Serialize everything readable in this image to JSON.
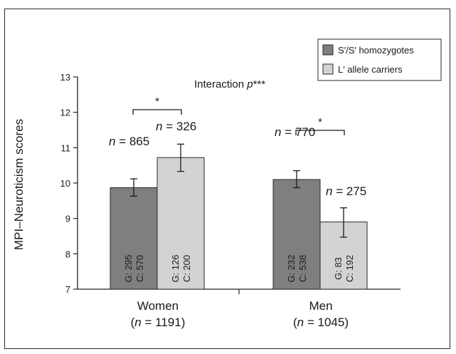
{
  "chart_data": {
    "type": "bar",
    "title": "",
    "xlabel": "",
    "ylabel": "MPI–Neuroticism scores",
    "ylim": [
      7,
      13
    ],
    "yticks": [
      "7",
      "8",
      "9",
      "10",
      "11",
      "12",
      "13"
    ],
    "legend_position": "top-right",
    "annotation": {
      "prefix": "Interaction ",
      "p": "p",
      "stars": "***"
    },
    "categories": [
      {
        "name": "Women",
        "n_open": "(",
        "n_var": "n",
        "n_eq": " = 1191)"
      },
      {
        "name": "Men",
        "n_open": "(",
        "n_var": "n",
        "n_eq": " = 1045)"
      }
    ],
    "series": [
      {
        "name": "S′/S′ homozygotes",
        "color": "#7f7f7f",
        "values": [
          9.87,
          10.1
        ],
        "error_low": [
          9.63,
          9.87
        ],
        "error_high": [
          10.12,
          10.35
        ],
        "n_labels": [
          "= 865",
          "= 770"
        ],
        "g_labels": [
          "G: 295",
          "G: 232"
        ],
        "c_labels": [
          "C: 570",
          "C: 538"
        ]
      },
      {
        "name": "L′ allele carriers",
        "color": "#d3d3d3",
        "values": [
          10.72,
          8.9
        ],
        "error_low": [
          10.33,
          8.47
        ],
        "error_high": [
          11.1,
          9.3
        ],
        "n_labels": [
          "= 326",
          "= 275"
        ],
        "g_labels": [
          "G: 126",
          "G: 83"
        ],
        "c_labels": [
          "C: 200",
          "C: 192"
        ]
      }
    ],
    "n_var": "n",
    "significance": [
      "*",
      "*"
    ]
  }
}
